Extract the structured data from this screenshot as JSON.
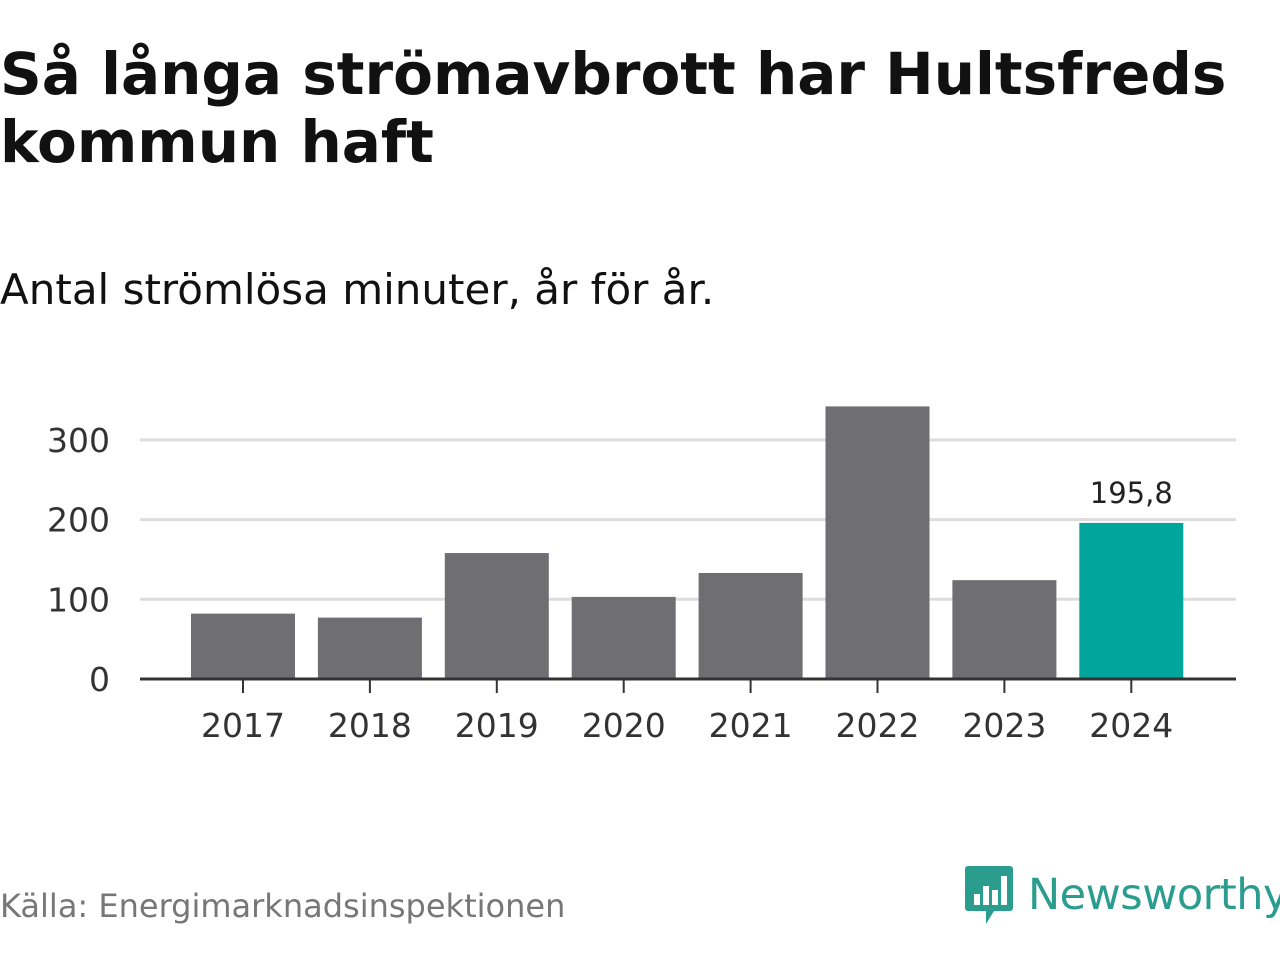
{
  "title": "Så långa strömavbrott har Hultsfreds kommun haft",
  "subtitle": "Antal strömlösa minuter, år för år.",
  "source": "Källa: Energimarknadsinspektionen",
  "brand": {
    "name": "Newsworthy",
    "color": "#2a9d8f",
    "logo_icon": "speech-bubble-bar-chart-icon"
  },
  "colors": {
    "bar": "#6e6e73",
    "highlight": "#00a69c",
    "grid": "#dddddd",
    "axis": "#333333"
  },
  "chart_data": {
    "type": "bar",
    "title": "Så långa strömavbrott har Hultsfreds kommun haft",
    "subtitle": "Antal strömlösa minuter, år för år.",
    "xlabel": "",
    "ylabel": "",
    "categories": [
      "2017",
      "2018",
      "2019",
      "2020",
      "2021",
      "2022",
      "2023",
      "2024"
    ],
    "values": [
      82,
      77,
      158,
      103,
      133,
      342,
      124,
      195.8
    ],
    "highlight_index": 7,
    "data_labels": [
      {
        "index": 7,
        "text": "195,8"
      }
    ],
    "ylim": [
      0,
      345
    ],
    "yticks": [
      0,
      100,
      200,
      300
    ],
    "grid": true
  }
}
